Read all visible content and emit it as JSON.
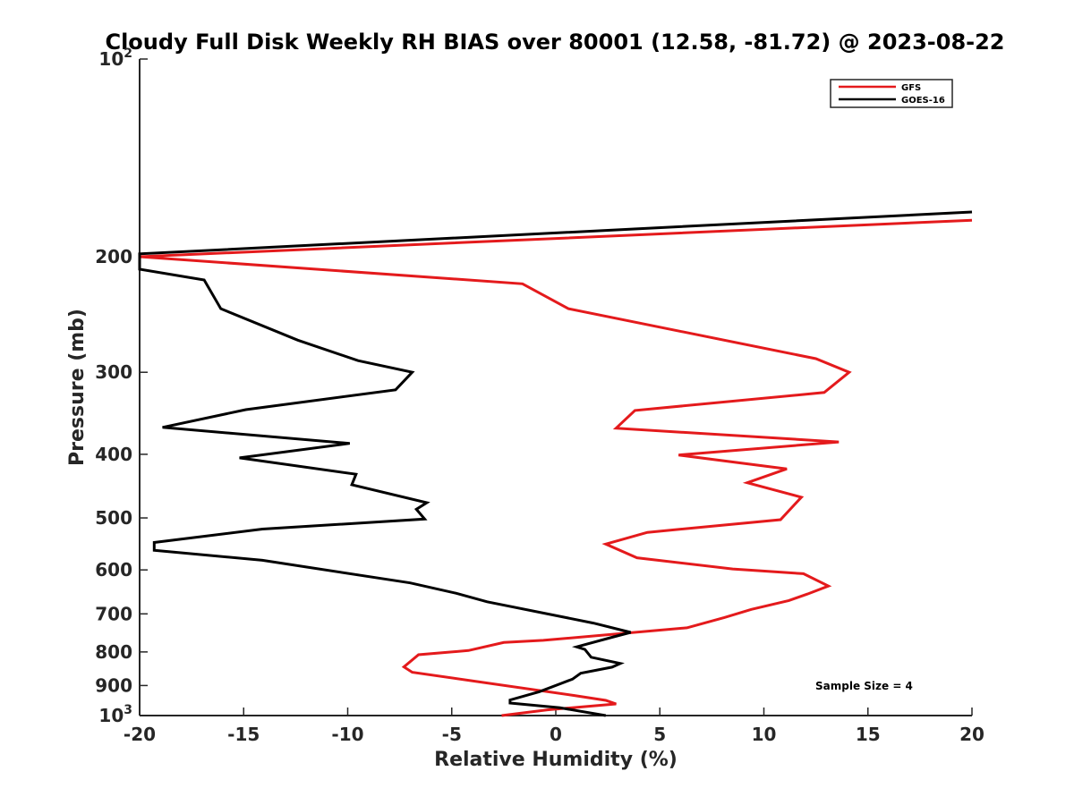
{
  "chart_data": {
    "type": "line",
    "title": "Cloudy Full Disk Weekly RH BIAS over 80001 (12.58, -81.72) @ 2023-08-22",
    "xlabel": "Relative Humidity (%)",
    "ylabel": "Pressure (mb)",
    "xlim": [
      -20,
      20
    ],
    "ylim": [
      100,
      1000
    ],
    "y_scale": "log",
    "y_reversed": true,
    "x_ticks": [
      -20,
      -15,
      -10,
      -5,
      0,
      5,
      10,
      15,
      20
    ],
    "x_tick_labels": [
      "-20",
      "-15",
      "-10",
      "-5",
      "0",
      "5",
      "10",
      "15",
      "20"
    ],
    "y_ticks": [
      {
        "value": 100,
        "base": "10",
        "exp": "2"
      },
      {
        "value": 200,
        "base": "200",
        "exp": ""
      },
      {
        "value": 300,
        "base": "300",
        "exp": ""
      },
      {
        "value": 400,
        "base": "400",
        "exp": ""
      },
      {
        "value": 500,
        "base": "500",
        "exp": ""
      },
      {
        "value": 600,
        "base": "600",
        "exp": ""
      },
      {
        "value": 700,
        "base": "700",
        "exp": ""
      },
      {
        "value": 800,
        "base": "800",
        "exp": ""
      },
      {
        "value": 900,
        "base": "900",
        "exp": ""
      },
      {
        "value": 1000,
        "base": "10",
        "exp": "3"
      }
    ],
    "grid": false,
    "legend_position": "top-right",
    "annotation": "Sample Size = 4",
    "series": [
      {
        "name": "GFS",
        "color": "#e41a1c",
        "points": [
          [
            20,
            176
          ],
          [
            -20,
            200
          ],
          [
            -1.6,
            220
          ],
          [
            0.6,
            240
          ],
          [
            12.5,
            286
          ],
          [
            14.1,
            300
          ],
          [
            12.9,
            322
          ],
          [
            3.8,
            343
          ],
          [
            2.9,
            365
          ],
          [
            13.6,
            383
          ],
          [
            5.9,
            401
          ],
          [
            11.1,
            421
          ],
          [
            9.2,
            442
          ],
          [
            11.8,
            465
          ],
          [
            10.8,
            503
          ],
          [
            4.4,
            526
          ],
          [
            2.4,
            548
          ],
          [
            3.9,
            575
          ],
          [
            8.5,
            598
          ],
          [
            11.9,
            608
          ],
          [
            13.1,
            635
          ],
          [
            12.1,
            653
          ],
          [
            11.2,
            668
          ],
          [
            9.4,
            689
          ],
          [
            8.1,
            709
          ],
          [
            6.3,
            735
          ],
          [
            -0.6,
            768
          ],
          [
            -2.5,
            774
          ],
          [
            -4.2,
            796
          ],
          [
            -6.6,
            808
          ],
          [
            -7.3,
            843
          ],
          [
            -6.9,
            859
          ],
          [
            0.9,
            932
          ],
          [
            2.4,
            948
          ],
          [
            2.9,
            960
          ],
          [
            -0.4,
            980
          ],
          [
            -2.6,
            1000
          ]
        ]
      },
      {
        "name": "GOES-16",
        "color": "#000000",
        "points": [
          [
            20,
            171
          ],
          [
            -20,
            198
          ],
          [
            -20,
            209
          ],
          [
            -16.9,
            217
          ],
          [
            -16.1,
            240
          ],
          [
            -12.4,
            268
          ],
          [
            -9.5,
            288
          ],
          [
            -6.9,
            300
          ],
          [
            -7.7,
            319
          ],
          [
            -14.9,
            342
          ],
          [
            -18.9,
            364
          ],
          [
            -9.9,
            385
          ],
          [
            -15.2,
            405
          ],
          [
            -9.6,
            429
          ],
          [
            -9.8,
            445
          ],
          [
            -6.2,
            474
          ],
          [
            -6.7,
            485
          ],
          [
            -6.3,
            502
          ],
          [
            -14.1,
            520
          ],
          [
            -19.3,
            545
          ],
          [
            -19.3,
            560
          ],
          [
            -14.1,
            580
          ],
          [
            -7.0,
            628
          ],
          [
            -4.8,
            651
          ],
          [
            -3.3,
            671
          ],
          [
            1.8,
            723
          ],
          [
            3.6,
            747
          ],
          [
            2.7,
            760
          ],
          [
            1.0,
            786
          ],
          [
            1.4,
            793
          ],
          [
            1.7,
            815
          ],
          [
            3.1,
            833
          ],
          [
            2.7,
            844
          ],
          [
            1.2,
            862
          ],
          [
            0.8,
            880
          ],
          [
            -0.8,
            920
          ],
          [
            -2.2,
            947
          ],
          [
            -2.2,
            957
          ],
          [
            0.2,
            973
          ],
          [
            2.4,
            1000
          ]
        ]
      }
    ]
  }
}
